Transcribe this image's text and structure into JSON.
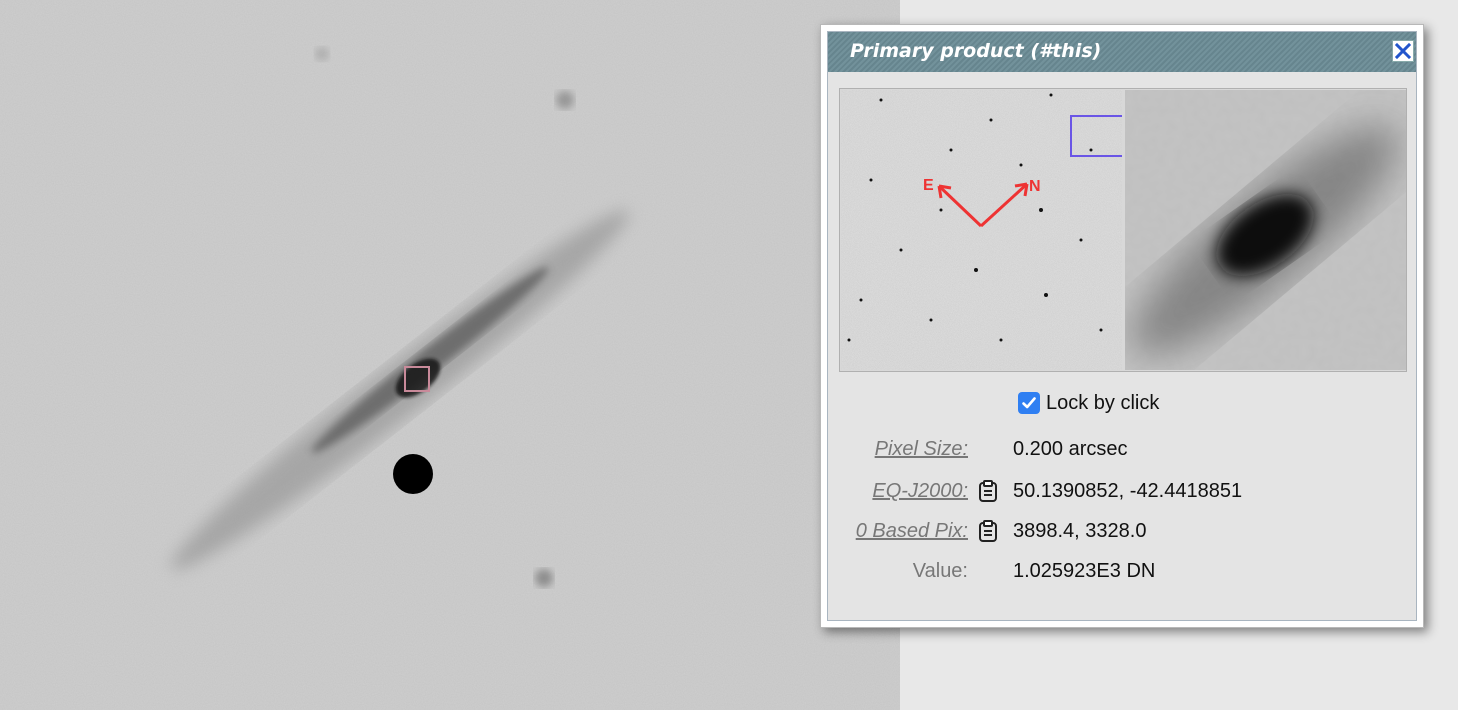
{
  "popup": {
    "title": "Primary product (#this)",
    "lock_label": "Lock by click",
    "lock_checked": true,
    "compass": {
      "east": "E",
      "north": "N"
    },
    "rows": [
      {
        "label": "Pixel Size:",
        "value": "0.200 arcsec",
        "has_copy": false,
        "link": true
      },
      {
        "label": "EQ-J2000:",
        "value": "50.1390852, -42.4418851",
        "has_copy": true,
        "link": true
      },
      {
        "label": "0 Based Pix:",
        "value": "3898.4, 3328.0",
        "has_copy": true,
        "link": true
      },
      {
        "label": "Value:",
        "value": "1.025923E3 DN",
        "has_copy": false,
        "link": false
      }
    ]
  },
  "colors": {
    "titlebar": "#6b8c96",
    "checkbox": "#2f7ff2",
    "compass": "#ee3333",
    "selection_box": "#6a55e6",
    "marker_box": "#c98a9a"
  }
}
